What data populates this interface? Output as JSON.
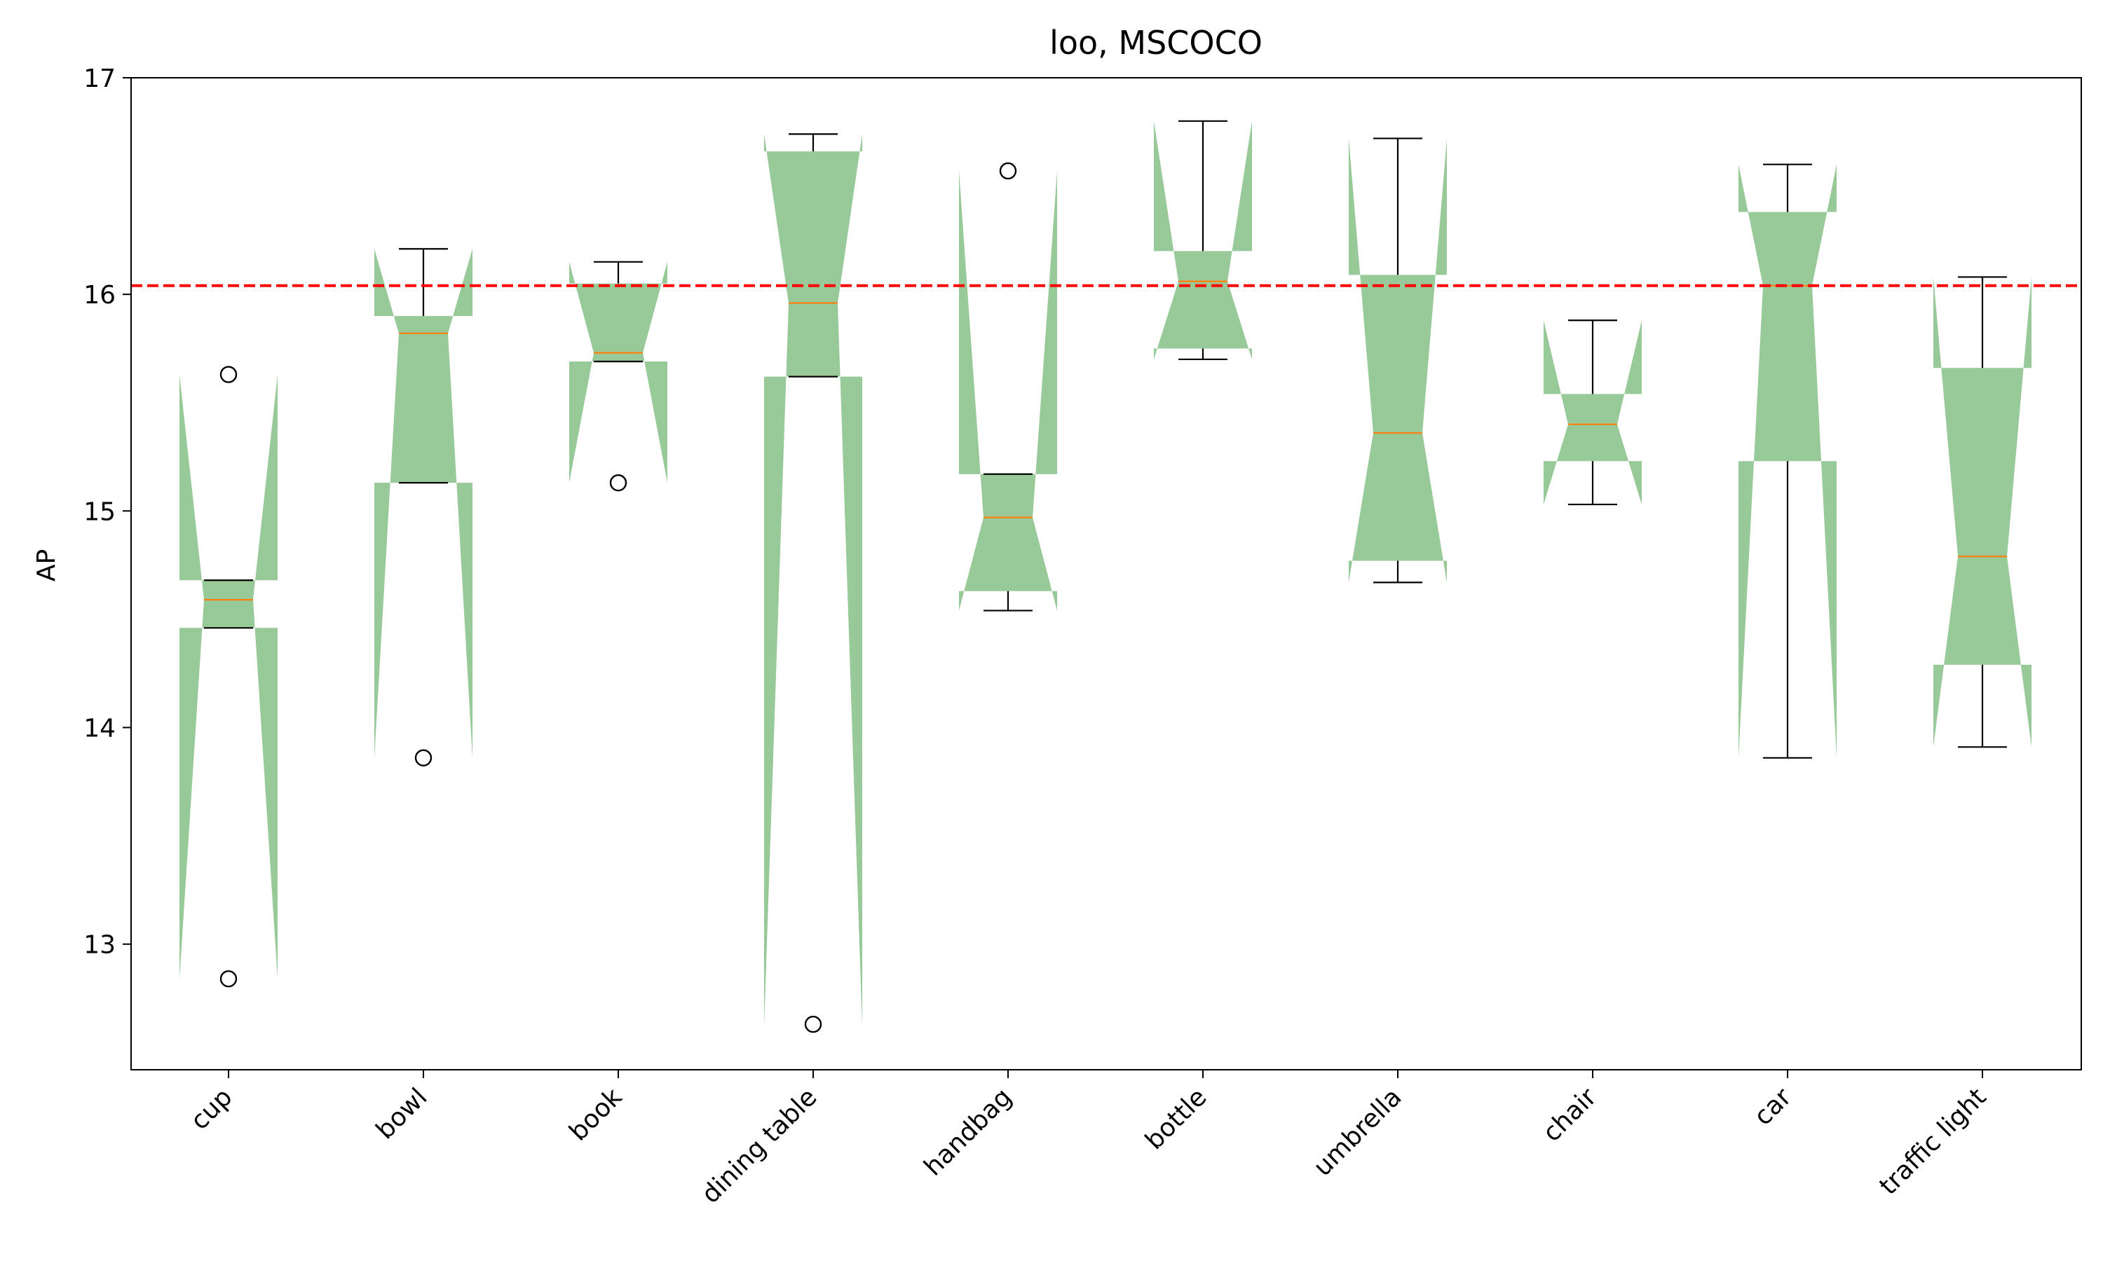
{
  "chart_data": {
    "type": "box",
    "title": "loo, MSCOCO",
    "xlabel": "",
    "ylabel": "AP",
    "ylim": [
      12.42,
      17.0
    ],
    "yticks": [
      13,
      14,
      15,
      16,
      17
    ],
    "notched": true,
    "reference_line": {
      "value": 16.04,
      "style": "dashed",
      "color": "#ff0000"
    },
    "colors": {
      "box_fill": "#98c998",
      "median": "#ff7f0e",
      "whisker": "#000000",
      "axes": "#000000"
    },
    "categories": [
      "cup",
      "bowl",
      "book",
      "dining table",
      "handbag",
      "bottle",
      "umbrella",
      "chair",
      "car",
      "traffic light"
    ],
    "boxes": [
      {
        "q1": 14.46,
        "median": 14.59,
        "q3": 14.68,
        "notch_low": 12.84,
        "notch_high": 15.63,
        "whisker_low": 14.46,
        "whisker_high": 14.68,
        "outliers": [
          15.63,
          12.84
        ]
      },
      {
        "q1": 15.13,
        "median": 15.82,
        "q3": 15.9,
        "notch_low": 13.86,
        "notch_high": 16.21,
        "whisker_low": 15.13,
        "whisker_high": 16.21,
        "outliers": [
          13.86
        ]
      },
      {
        "q1": 15.69,
        "median": 15.73,
        "q3": 16.05,
        "notch_low": 15.13,
        "notch_high": 16.15,
        "whisker_low": 15.69,
        "whisker_high": 16.15,
        "outliers": [
          15.13
        ]
      },
      {
        "q1": 15.62,
        "median": 15.96,
        "q3": 16.66,
        "notch_low": 12.62,
        "notch_high": 16.74,
        "whisker_low": 15.62,
        "whisker_high": 16.74,
        "outliers": [
          12.63
        ]
      },
      {
        "q1": 14.63,
        "median": 14.97,
        "q3": 15.17,
        "notch_low": 14.54,
        "notch_high": 16.57,
        "whisker_low": 14.54,
        "whisker_high": 15.17,
        "outliers": [
          16.57
        ]
      },
      {
        "q1": 15.75,
        "median": 16.06,
        "q3": 16.2,
        "notch_low": 15.7,
        "notch_high": 16.8,
        "whisker_low": 15.7,
        "whisker_high": 16.8,
        "outliers": []
      },
      {
        "q1": 14.77,
        "median": 15.36,
        "q3": 16.09,
        "notch_low": 14.67,
        "notch_high": 16.72,
        "whisker_low": 14.67,
        "whisker_high": 16.72,
        "outliers": []
      },
      {
        "q1": 15.23,
        "median": 15.4,
        "q3": 15.54,
        "notch_low": 15.03,
        "notch_high": 15.88,
        "whisker_low": 15.03,
        "whisker_high": 15.88,
        "outliers": []
      },
      {
        "q1": 15.23,
        "median": 16.04,
        "q3": 16.38,
        "notch_low": 13.86,
        "notch_high": 16.6,
        "whisker_low": 13.86,
        "whisker_high": 16.6,
        "outliers": []
      },
      {
        "q1": 14.29,
        "median": 14.79,
        "q3": 15.66,
        "notch_low": 13.91,
        "notch_high": 16.08,
        "whisker_low": 13.91,
        "whisker_high": 16.08,
        "outliers": []
      }
    ]
  }
}
